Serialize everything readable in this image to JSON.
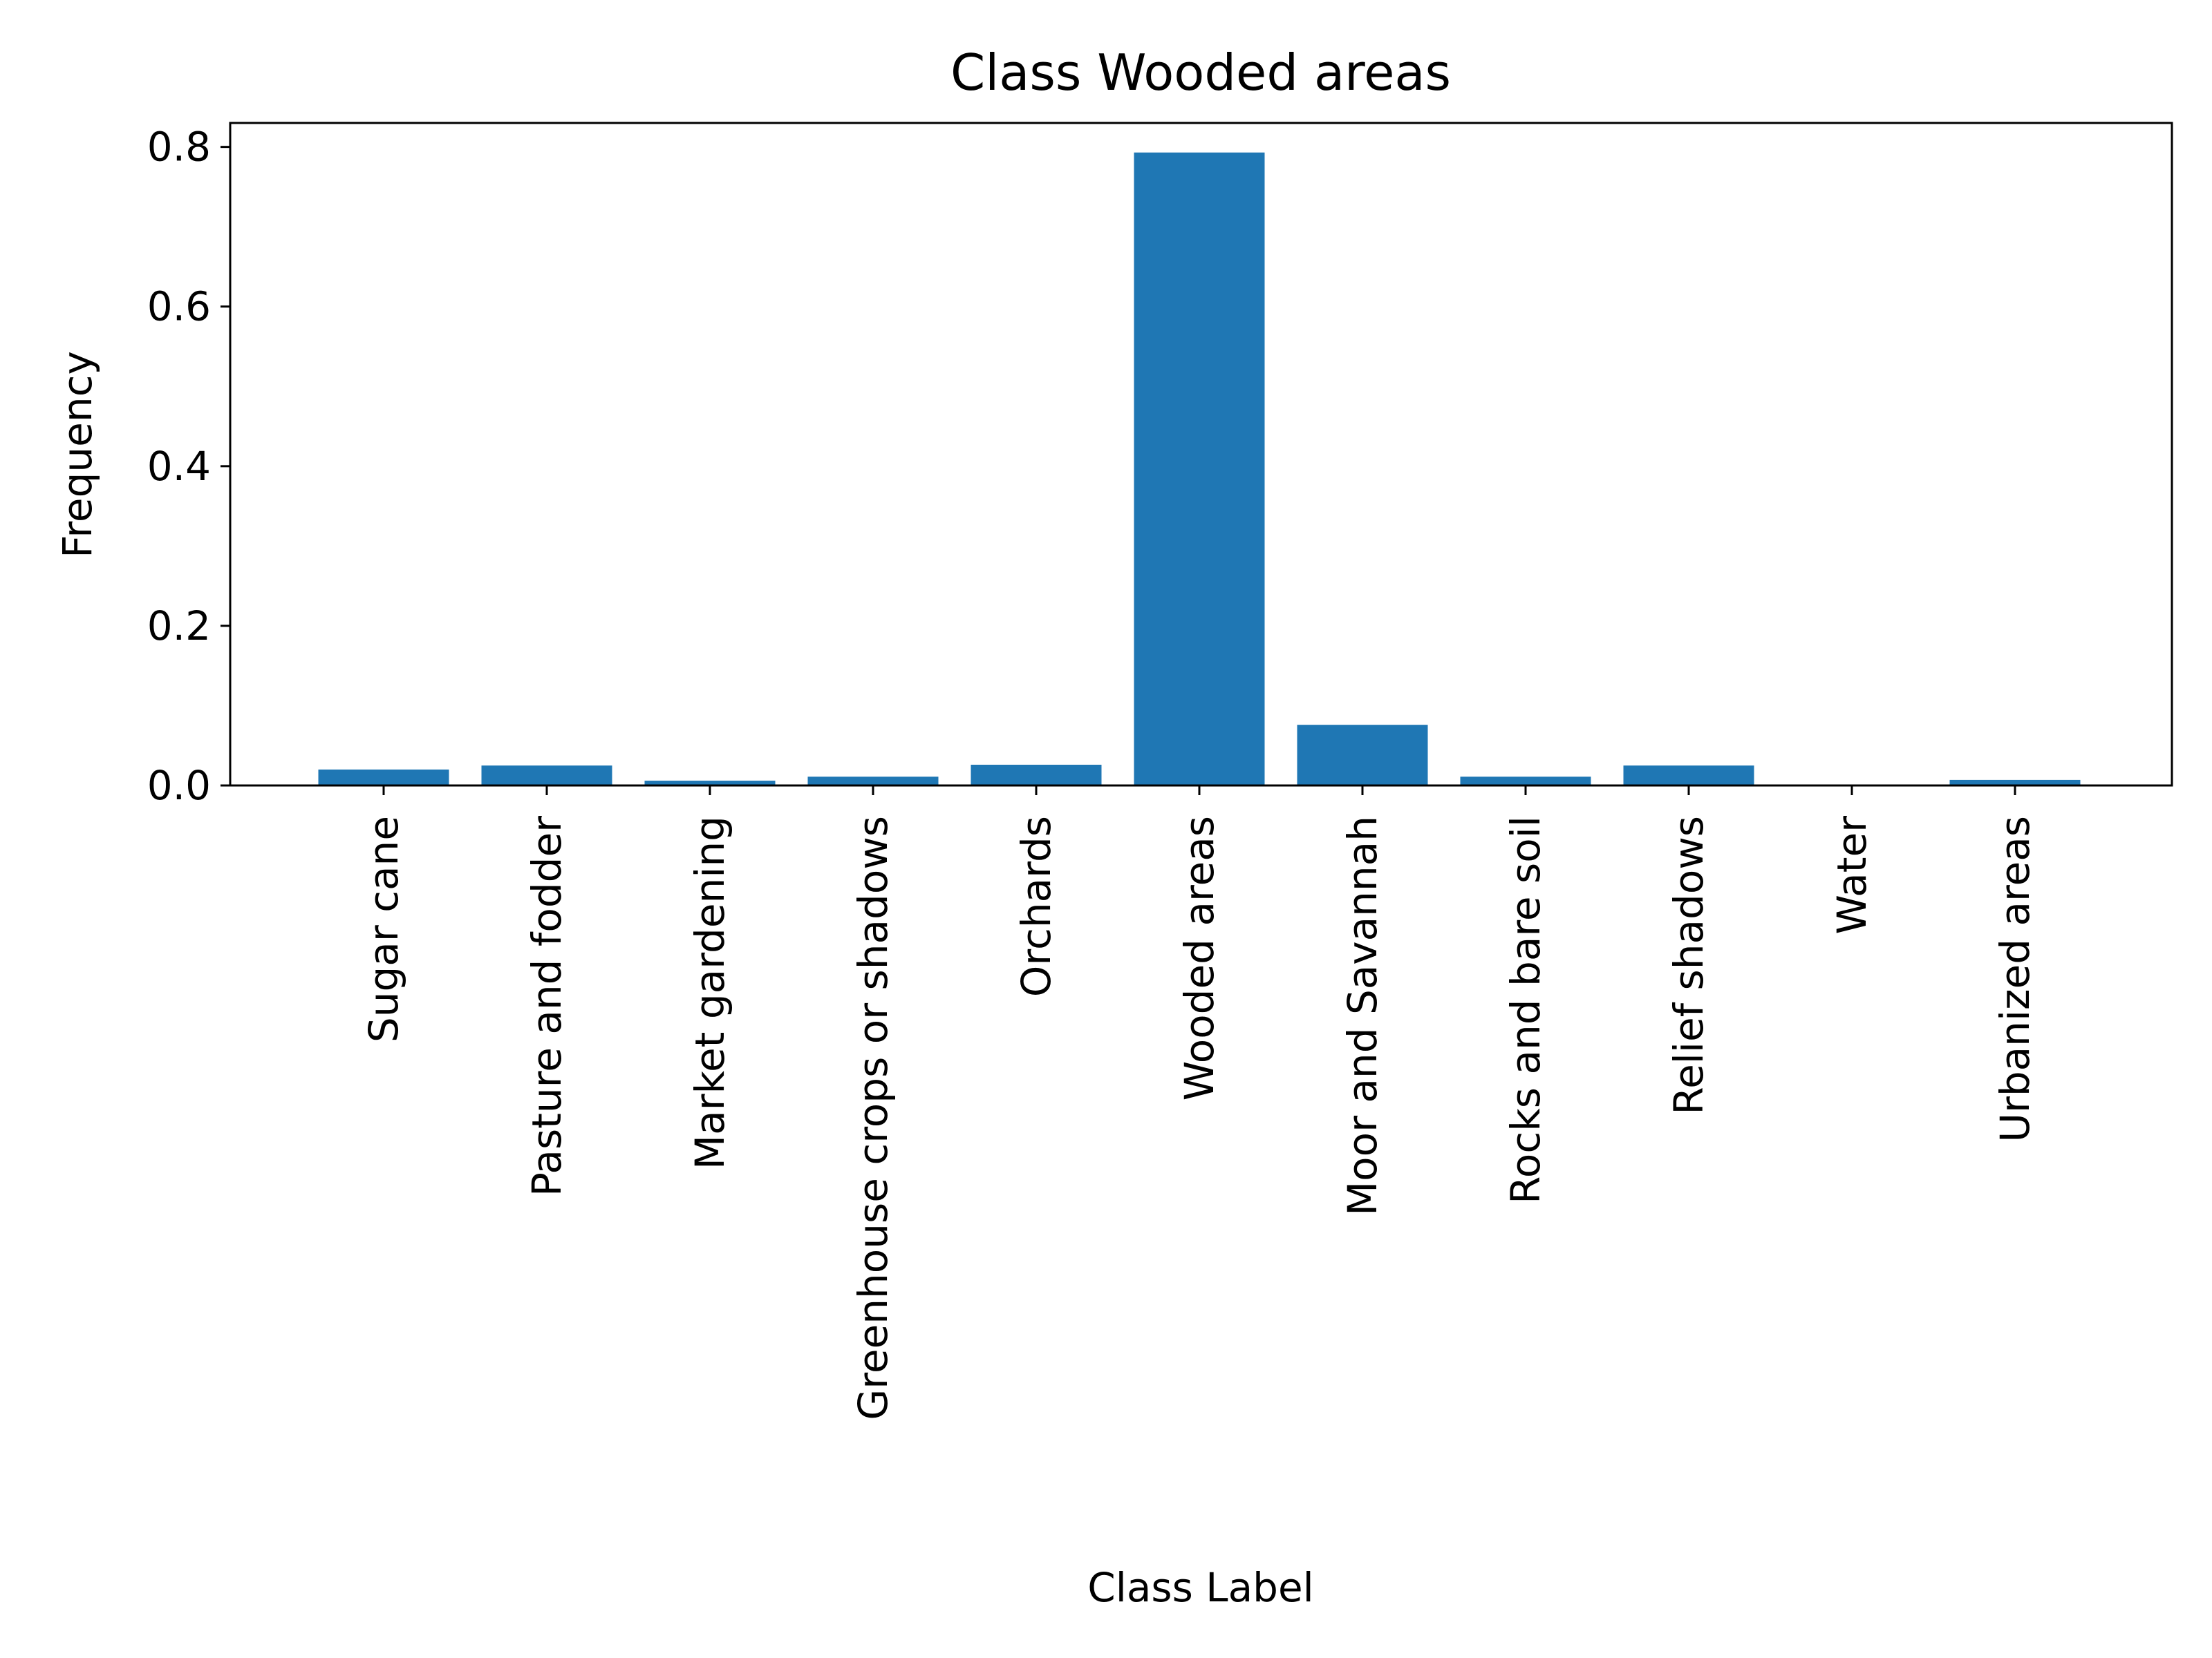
{
  "chart_data": {
    "type": "bar",
    "title": "Class Wooded areas",
    "xlabel": "Class Label",
    "ylabel": "Frequency",
    "categories": [
      "Sugar cane",
      "Pasture and fodder",
      "Market gardening",
      "Greenhouse crops or shadows",
      "Orchards",
      "Wooded areas",
      "Moor and Savannah",
      "Rocks and bare soil",
      "Relief shadows",
      "Water",
      "Urbanized areas"
    ],
    "values": [
      0.02,
      0.025,
      0.006,
      0.011,
      0.026,
      0.793,
      0.076,
      0.011,
      0.025,
      0.001,
      0.007
    ],
    "ylim": [
      0,
      0.83
    ],
    "yticks": [
      0.0,
      0.2,
      0.4,
      0.6,
      0.8
    ],
    "ytick_labels": [
      "0.0",
      "0.2",
      "0.4",
      "0.6",
      "0.8"
    ],
    "grid": false,
    "bar_color": "#1f77b4"
  }
}
